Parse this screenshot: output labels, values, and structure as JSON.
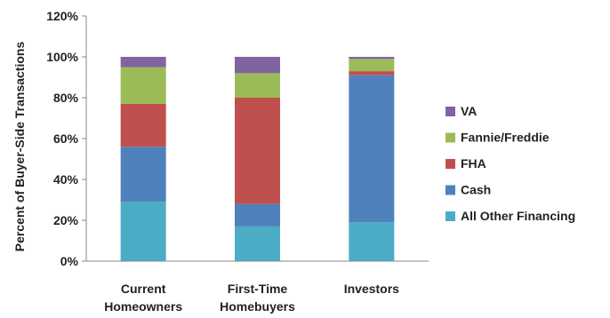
{
  "chart_data": {
    "type": "bar",
    "stacked": true,
    "categories": [
      [
        "Current",
        "Homeowners"
      ],
      [
        "First-Time",
        "Homebuyers"
      ],
      [
        "Investors"
      ]
    ],
    "series": [
      {
        "name": "All Other Financing",
        "color": "#4bacc6",
        "values": [
          29,
          17,
          19
        ]
      },
      {
        "name": "Cash",
        "color": "#4f81bd",
        "values": [
          27,
          11,
          72
        ]
      },
      {
        "name": "FHA",
        "color": "#c0504d",
        "values": [
          21,
          52,
          2
        ]
      },
      {
        "name": "Fannie/Freddie",
        "color": "#9bbb59",
        "values": [
          18,
          12,
          6
        ]
      },
      {
        "name": "VA",
        "color": "#8064a2",
        "values": [
          5,
          8,
          1
        ]
      }
    ],
    "yticks": [
      "0%",
      "20%",
      "40%",
      "60%",
      "80%",
      "100%",
      "120%"
    ],
    "ylim": [
      0,
      120
    ],
    "ylabel": "Percent  of Buyer-Side Transactions",
    "legend_position": "right",
    "grid": false
  }
}
